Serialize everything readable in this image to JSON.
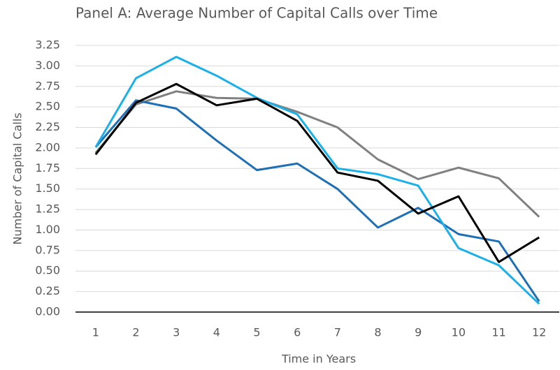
{
  "chart_data": {
    "type": "line",
    "title": "Panel A: Average Number of Capital Calls over Time",
    "x_label": "Time in Years",
    "y_label": "Number of Capital Calls",
    "categories": [
      "1",
      "2",
      "3",
      "4",
      "5",
      "6",
      "7",
      "8",
      "9",
      "10",
      "11",
      "12"
    ],
    "series": [
      {
        "color": "#808080",
        "values": [
          1.94,
          2.53,
          2.69,
          2.61,
          2.6,
          2.44,
          2.25,
          1.86,
          1.62,
          1.76,
          1.63,
          1.16
        ]
      },
      {
        "color": "#1f6fb5",
        "values": [
          2.01,
          2.58,
          2.48,
          2.09,
          1.73,
          1.81,
          1.5,
          1.03,
          1.27,
          0.95,
          0.86,
          0.13
        ]
      },
      {
        "color": "#1cb0e8",
        "values": [
          2.01,
          2.85,
          3.11,
          2.88,
          2.61,
          2.41,
          1.75,
          1.68,
          1.54,
          0.78,
          0.57,
          0.1
        ]
      },
      {
        "color": "#000000",
        "values": [
          1.92,
          2.55,
          2.78,
          2.52,
          2.6,
          2.33,
          1.7,
          1.6,
          1.2,
          1.41,
          0.61,
          0.91
        ]
      }
    ],
    "ylim": [
      0,
      3.25
    ],
    "yticks": [
      {
        "value": 0,
        "label": "0.00"
      },
      {
        "value": 0.25,
        "label": "0.25"
      },
      {
        "value": 0.5,
        "label": "0.50"
      },
      {
        "value": 0.75,
        "label": "0.75"
      },
      {
        "value": 1,
        "label": "1.00"
      },
      {
        "value": 1.25,
        "label": "1.25"
      },
      {
        "value": 1.5,
        "label": "1.50"
      },
      {
        "value": 1.75,
        "label": "1.75"
      },
      {
        "value": 2,
        "label": "2.00"
      },
      {
        "value": 2.25,
        "label": "2.25"
      },
      {
        "value": 2.5,
        "label": "2.50"
      },
      {
        "value": 2.75,
        "label": "2.75"
      },
      {
        "value": 3,
        "label": "3.00"
      },
      {
        "value": 3.25,
        "label": "3.25"
      }
    ],
    "grid": true
  }
}
